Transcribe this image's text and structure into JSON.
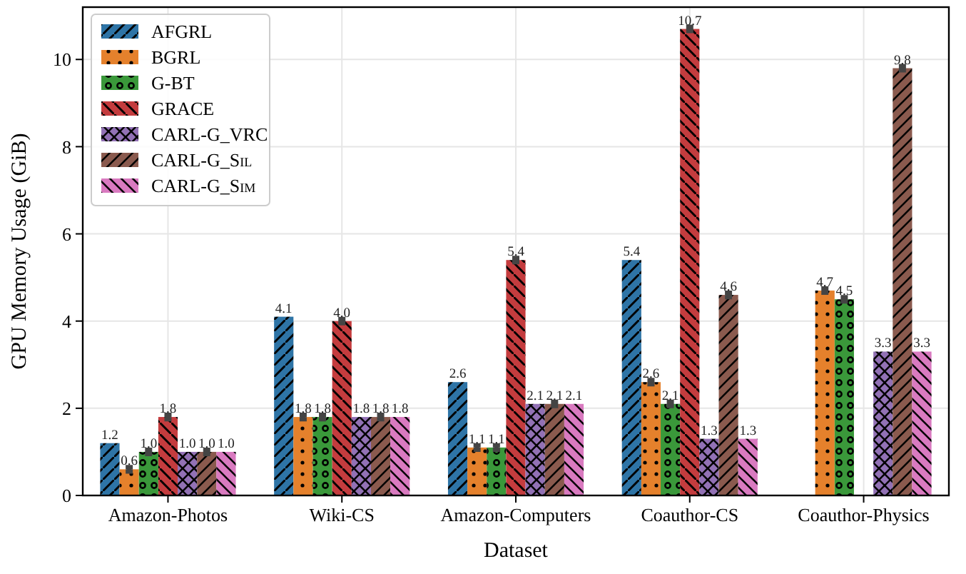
{
  "chart_data": {
    "type": "bar",
    "xlabel": "Dataset",
    "ylabel": "GPU Memory Usage (GiB)",
    "categories": [
      "Amazon-Photos",
      "Wiki-CS",
      "Amazon-Computers",
      "Coauthor-CS",
      "Coauthor-Physics"
    ],
    "ylim": [
      0,
      11.2
    ],
    "yticks": [
      0,
      2,
      4,
      6,
      8,
      10
    ],
    "grid": true,
    "legend": "top left",
    "series": [
      {
        "name": "AFGRL",
        "color": "#2e74a6",
        "values": [
          1.2,
          4.1,
          2.6,
          5.4,
          null
        ],
        "value_labels": [
          "1.2",
          "4.1",
          "2.6",
          "5.4",
          null
        ]
      },
      {
        "name": "BGRL",
        "color": "#e5812c",
        "values": [
          0.6,
          1.8,
          1.1,
          2.6,
          4.7
        ],
        "value_labels": [
          "0.6",
          "1.8",
          "1.1",
          "2.6",
          "4.7"
        ],
        "errors": [
          0.05,
          0.05,
          0.05,
          0.05,
          0.05
        ]
      },
      {
        "name": "G-BT",
        "color": "#3a983a",
        "values": [
          1.0,
          1.8,
          1.1,
          2.1,
          4.5
        ],
        "value_labels": [
          "1.0",
          "1.8",
          "1.1",
          "2.1",
          "4.5"
        ],
        "errors": [
          0.05,
          0.05,
          0.05,
          0.05,
          0.05
        ]
      },
      {
        "name": "GRACE",
        "color": "#c43c3e",
        "values": [
          1.8,
          4.0,
          5.4,
          10.7,
          null
        ],
        "value_labels": [
          "1.8",
          "4.0",
          "5.4",
          "10.7",
          null
        ],
        "errors": [
          0.05,
          0.05,
          0.05,
          0.05,
          null
        ]
      },
      {
        "name": "CARL-G_VRC",
        "color": "#9271b5",
        "values": [
          1.0,
          1.8,
          2.1,
          1.3,
          3.3
        ],
        "value_labels": [
          "1.0",
          "1.8",
          "2.1",
          "1.3",
          "3.3"
        ]
      },
      {
        "name": "CARL-G_Sil",
        "color": "#8a5a4e",
        "values": [
          1.0,
          1.8,
          2.1,
          4.6,
          9.8
        ],
        "value_labels": [
          "1.0",
          "1.8",
          "2.1",
          "4.6",
          "9.8"
        ],
        "errors": [
          0.05,
          0.05,
          0.05,
          0.05,
          0.05
        ]
      },
      {
        "name": "CARL-G_Sim",
        "color": "#d97ac0",
        "values": [
          1.0,
          1.8,
          2.1,
          1.3,
          3.3
        ],
        "value_labels": [
          "1.0",
          "1.8",
          "2.1",
          "1.3",
          "3.3"
        ]
      }
    ]
  }
}
